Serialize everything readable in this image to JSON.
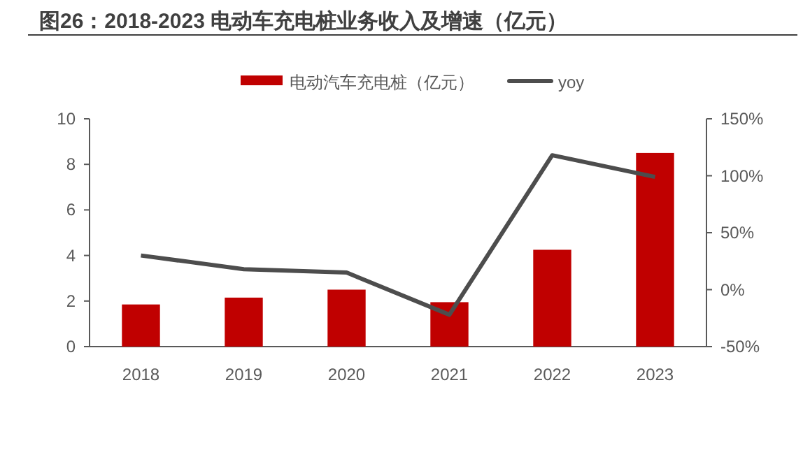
{
  "chart_data": {
    "type": "bar",
    "title": "图26：2018-2023 电动车充电桩业务收入及增速（亿元）",
    "categories": [
      "2018",
      "2019",
      "2020",
      "2021",
      "2022",
      "2023"
    ],
    "series": [
      {
        "name": "电动汽车充电桩（亿元）",
        "color": "#c00000",
        "values": [
          1.85,
          2.15,
          2.5,
          1.95,
          4.25,
          8.5
        ]
      },
      {
        "name": "yoy",
        "type": "line",
        "axis": "y2",
        "color": "#4d4d4d",
        "values": [
          30,
          18,
          15,
          -22,
          118,
          99
        ]
      }
    ],
    "ylim": [
      0,
      10
    ],
    "yticks": [
      0,
      2,
      4,
      6,
      8,
      10
    ],
    "y2lim": [
      -50,
      150
    ],
    "y2ticks": [
      {
        "value": -50,
        "label": "-50%"
      },
      {
        "value": 0,
        "label": "0%"
      },
      {
        "value": 50,
        "label": "50%"
      },
      {
        "value": 100,
        "label": "100%"
      },
      {
        "value": 150,
        "label": "150%"
      }
    ],
    "legend": "top",
    "grid": false,
    "marker": "none"
  }
}
